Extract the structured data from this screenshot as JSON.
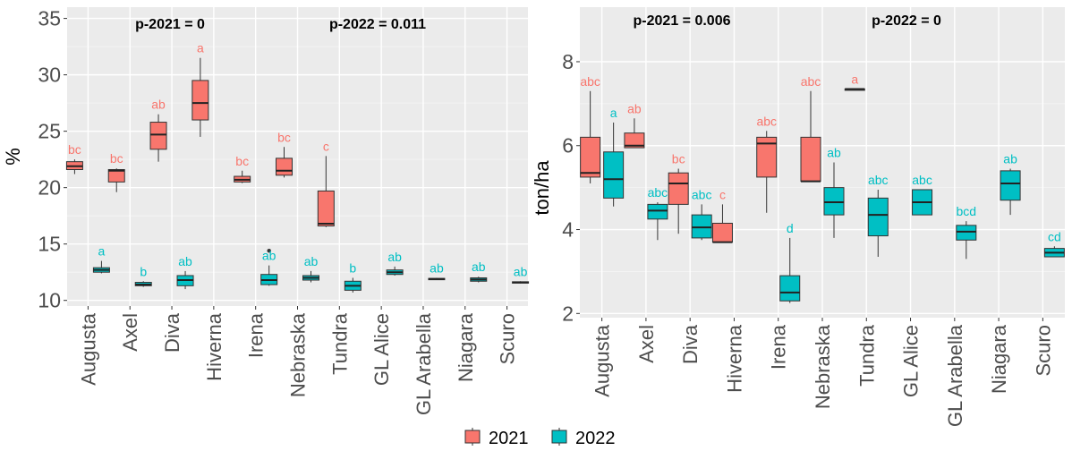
{
  "chart_data": [
    {
      "type": "box",
      "ylabel": "%",
      "ylim": [
        9.5,
        36
      ],
      "yticks": [
        10,
        15,
        20,
        25,
        30,
        35
      ],
      "categories": [
        "Augusta",
        "Axel",
        "Diva",
        "Hiverna",
        "Irena",
        "Nebraska",
        "Tundra",
        "GL Alice",
        "GL Arabella",
        "Niagara",
        "Scuro"
      ],
      "annotations": [
        "p-2021 = 0",
        "p-2022 = 0.011"
      ],
      "grid": true,
      "series": [
        {
          "name": "2021",
          "color": "#F8766D",
          "boxes": [
            {
              "category": "Augusta",
              "min": 21.2,
              "q1": 21.6,
              "median": 21.9,
              "q3": 22.3,
              "max": 22.5,
              "label": "bc"
            },
            {
              "category": "Axel",
              "min": 19.6,
              "q1": 20.5,
              "median": 21.5,
              "q3": 21.6,
              "max": 21.7,
              "label": "bc"
            },
            {
              "category": "Diva",
              "min": 22.3,
              "q1": 23.4,
              "median": 24.7,
              "q3": 25.8,
              "max": 26.5,
              "label": "ab"
            },
            {
              "category": "Hiverna",
              "min": 24.5,
              "q1": 26.0,
              "median": 27.5,
              "q3": 29.5,
              "max": 31.5,
              "label": "a"
            },
            {
              "category": "Irena",
              "min": 20.4,
              "q1": 20.5,
              "median": 20.7,
              "q3": 21.0,
              "max": 21.5,
              "label": "bc"
            },
            {
              "category": "Nebraska",
              "min": 20.9,
              "q1": 21.1,
              "median": 21.5,
              "q3": 22.6,
              "max": 23.6,
              "label": "bc"
            },
            {
              "category": "Tundra",
              "min": 16.5,
              "q1": 16.6,
              "median": 16.8,
              "q3": 19.7,
              "max": 22.8,
              "label": "c"
            }
          ]
        },
        {
          "name": "2022",
          "color": "#00BFC4",
          "boxes": [
            {
              "category": "Augusta",
              "min": 12.4,
              "q1": 12.5,
              "median": 12.7,
              "q3": 12.9,
              "max": 13.5,
              "label": "a"
            },
            {
              "category": "Axel",
              "min": 11.2,
              "q1": 11.3,
              "median": 11.4,
              "q3": 11.6,
              "max": 11.7,
              "label": "b"
            },
            {
              "category": "Diva",
              "min": 11.0,
              "q1": 11.3,
              "median": 11.8,
              "q3": 12.2,
              "max": 12.6,
              "label": "ab"
            },
            {
              "category": "Irena",
              "min": 11.3,
              "q1": 11.4,
              "median": 11.8,
              "q3": 12.3,
              "max": 13.1,
              "outliers": [
                14.4
              ],
              "label": "ab"
            },
            {
              "category": "Nebraska",
              "min": 11.6,
              "q1": 11.8,
              "median": 12.0,
              "q3": 12.2,
              "max": 12.6,
              "label": "ab"
            },
            {
              "category": "Tundra",
              "min": 10.7,
              "q1": 10.9,
              "median": 11.3,
              "q3": 11.7,
              "max": 12.0,
              "label": "b"
            },
            {
              "category": "GL Alice",
              "min": 12.2,
              "q1": 12.3,
              "median": 12.5,
              "q3": 12.7,
              "max": 13.0,
              "label": "ab"
            },
            {
              "category": "GL Arabella",
              "min": 11.8,
              "q1": 11.85,
              "median": 11.9,
              "q3": 11.95,
              "max": 12.0,
              "label": "ab"
            },
            {
              "category": "Niagara",
              "min": 11.6,
              "q1": 11.7,
              "median": 11.85,
              "q3": 12.0,
              "max": 12.1,
              "label": "ab"
            },
            {
              "category": "Scuro",
              "min": 11.5,
              "q1": 11.55,
              "median": 11.6,
              "q3": 11.65,
              "max": 11.7,
              "label": "ab"
            }
          ]
        }
      ]
    },
    {
      "type": "box",
      "ylabel": "ton/ha",
      "ylim": [
        1.9,
        9.3
      ],
      "yticks": [
        2,
        4,
        6,
        8
      ],
      "categories": [
        "Augusta",
        "Axel",
        "Diva",
        "Hiverna",
        "Irena",
        "Nebraska",
        "Tundra",
        "GL Alice",
        "GL Arabella",
        "Niagara",
        "Scuro"
      ],
      "annotations": [
        "p-2021 = 0.006",
        "p-2022 = 0"
      ],
      "grid": true,
      "series": [
        {
          "name": "2021",
          "color": "#F8766D",
          "boxes": [
            {
              "category": "Augusta",
              "min": 5.1,
              "q1": 5.25,
              "median": 5.35,
              "q3": 6.2,
              "max": 7.3,
              "label": "abc"
            },
            {
              "category": "Axel",
              "min": 5.95,
              "q1": 5.95,
              "median": 6.0,
              "q3": 6.3,
              "max": 6.65,
              "label": "ab"
            },
            {
              "category": "Diva",
              "min": 3.9,
              "q1": 4.6,
              "median": 5.1,
              "q3": 5.35,
              "max": 5.45,
              "label": "bc"
            },
            {
              "category": "Hiverna",
              "min": 3.7,
              "q1": 3.7,
              "median": 3.7,
              "q3": 4.15,
              "max": 4.6,
              "label": "c"
            },
            {
              "category": "Irena",
              "min": 4.4,
              "q1": 5.25,
              "median": 6.05,
              "q3": 6.2,
              "max": 6.35,
              "label": "abc"
            },
            {
              "category": "Nebraska",
              "min": 5.15,
              "q1": 5.15,
              "median": 5.15,
              "q3": 6.2,
              "max": 7.3,
              "label": "abc"
            },
            {
              "category": "Tundra",
              "min": 7.35,
              "q1": 7.35,
              "median": 7.35,
              "q3": 7.35,
              "max": 7.35,
              "label": "a"
            }
          ]
        },
        {
          "name": "2022",
          "color": "#00BFC4",
          "boxes": [
            {
              "category": "Augusta",
              "min": 4.55,
              "q1": 4.75,
              "median": 5.2,
              "q3": 5.85,
              "max": 6.55,
              "label": "a"
            },
            {
              "category": "Axel",
              "min": 3.75,
              "q1": 4.25,
              "median": 4.45,
              "q3": 4.6,
              "max": 4.65,
              "label": "abc"
            },
            {
              "category": "Diva",
              "min": 3.75,
              "q1": 3.8,
              "median": 4.05,
              "q3": 4.35,
              "max": 4.6,
              "label": "abc"
            },
            {
              "category": "Irena",
              "min": 2.25,
              "q1": 2.3,
              "median": 2.5,
              "q3": 2.9,
              "max": 3.8,
              "label": "d"
            },
            {
              "category": "Nebraska",
              "min": 3.8,
              "q1": 4.35,
              "median": 4.65,
              "q3": 5.0,
              "max": 5.6,
              "label": "ab"
            },
            {
              "category": "Tundra",
              "min": 3.35,
              "q1": 3.85,
              "median": 4.35,
              "q3": 4.75,
              "max": 4.95,
              "label": "abc"
            },
            {
              "category": "GL Alice",
              "min": 4.35,
              "q1": 4.35,
              "median": 4.65,
              "q3": 4.95,
              "max": 4.95,
              "label": "abc"
            },
            {
              "category": "GL Arabella",
              "min": 3.3,
              "q1": 3.75,
              "median": 3.95,
              "q3": 4.1,
              "max": 4.2,
              "label": "bcd"
            },
            {
              "category": "Niagara",
              "min": 4.35,
              "q1": 4.7,
              "median": 5.1,
              "q3": 5.4,
              "max": 5.45,
              "label": "ab"
            },
            {
              "category": "Scuro",
              "min": 3.35,
              "q1": 3.35,
              "median": 3.45,
              "q3": 3.55,
              "max": 3.6,
              "label": "cd"
            }
          ]
        }
      ]
    }
  ],
  "legend": {
    "placement": "bottom-center",
    "items": [
      {
        "label": "2021",
        "color": "#F8766D"
      },
      {
        "label": "2022",
        "color": "#00BFC4"
      }
    ]
  },
  "theme": {
    "panel_bg": "#EBEBEB",
    "grid_major": "#FFFFFF",
    "text": "#000000",
    "axis_text": "#4D4D4D"
  }
}
